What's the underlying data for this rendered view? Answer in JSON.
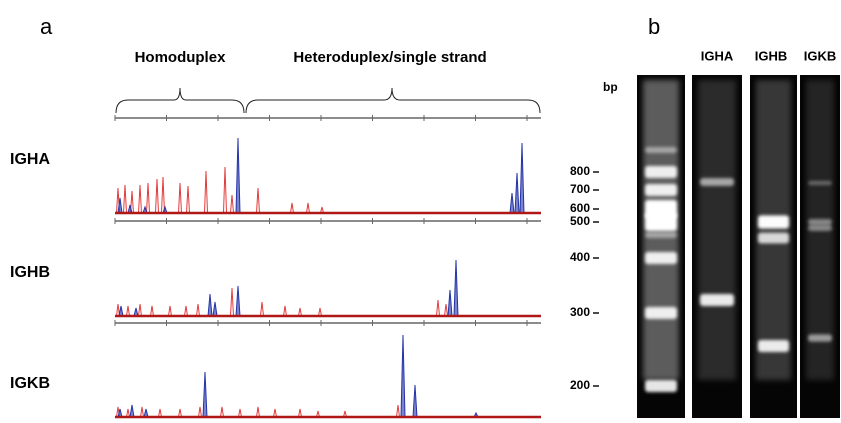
{
  "panel_a": {
    "label": "a",
    "group_labels": [
      "Homoduplex",
      "Heteroduplex/single strand"
    ],
    "rows": [
      "IGHA",
      "IGHB",
      "IGKB"
    ]
  },
  "panel_b": {
    "label": "b",
    "unit": "bp",
    "lanes": [
      "IGHA",
      "IGHB",
      "IGKB"
    ],
    "markers": [
      800,
      700,
      600,
      500,
      400,
      300,
      200
    ]
  }
}
